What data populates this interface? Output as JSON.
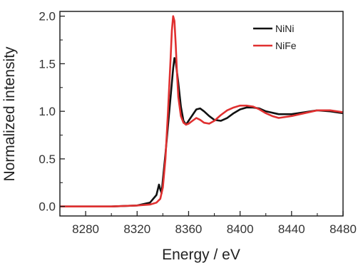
{
  "chart_data": {
    "type": "line",
    "xlabel": "Energy / eV",
    "ylabel": "Normalized intensity",
    "xlim": [
      8260,
      8480
    ],
    "ylim": [
      -0.1,
      2.05
    ],
    "xticks": [
      8280,
      8320,
      8360,
      8400,
      8440,
      8480
    ],
    "xtick_labels": [
      "8280",
      "8320",
      "8360",
      "8400",
      "8440",
      "8480"
    ],
    "yticks": [
      0.0,
      0.5,
      1.0,
      1.5,
      2.0
    ],
    "ytick_labels": [
      "0.0",
      "0.5",
      "1.0",
      "1.5",
      "2.0"
    ],
    "legend_position": "top-right",
    "grid": false,
    "series": [
      {
        "name": "NiNi",
        "color": "#111111",
        "x": [
          8260,
          8300,
          8320,
          8330,
          8335,
          8337,
          8338,
          8339,
          8340,
          8342,
          8344,
          8346,
          8347,
          8348,
          8349,
          8350,
          8352,
          8354,
          8356,
          8358,
          8360,
          8363,
          8366,
          8369,
          8372,
          8376,
          8380,
          8385,
          8390,
          8395,
          8400,
          8405,
          8410,
          8415,
          8420,
          8430,
          8440,
          8450,
          8460,
          8470,
          8480
        ],
        "y": [
          0.0,
          0.0,
          0.01,
          0.04,
          0.12,
          0.23,
          0.18,
          0.14,
          0.28,
          0.55,
          0.85,
          1.15,
          1.3,
          1.45,
          1.56,
          1.52,
          1.3,
          1.05,
          0.9,
          0.86,
          0.9,
          0.96,
          1.02,
          1.03,
          1.0,
          0.95,
          0.91,
          0.9,
          0.93,
          0.98,
          1.02,
          1.04,
          1.04,
          1.03,
          1.0,
          0.97,
          0.97,
          0.99,
          1.01,
          1.0,
          0.98
        ]
      },
      {
        "name": "NiFe",
        "color": "#e03030",
        "x": [
          8260,
          8300,
          8320,
          8330,
          8335,
          8338,
          8340,
          8342,
          8344,
          8346,
          8347,
          8348,
          8349,
          8350,
          8351,
          8352,
          8354,
          8356,
          8358,
          8360,
          8363,
          8366,
          8369,
          8372,
          8376,
          8380,
          8385,
          8390,
          8395,
          8400,
          8405,
          8410,
          8415,
          8420,
          8425,
          8430,
          8440,
          8450,
          8460,
          8470,
          8480
        ],
        "y": [
          0.0,
          0.0,
          0.01,
          0.02,
          0.04,
          0.08,
          0.2,
          0.5,
          1.0,
          1.55,
          1.85,
          2.0,
          1.95,
          1.7,
          1.4,
          1.15,
          0.95,
          0.88,
          0.86,
          0.87,
          0.9,
          0.93,
          0.91,
          0.88,
          0.87,
          0.9,
          0.96,
          1.01,
          1.04,
          1.06,
          1.06,
          1.05,
          1.02,
          0.98,
          0.95,
          0.93,
          0.95,
          0.98,
          1.01,
          1.01,
          0.99
        ]
      }
    ]
  }
}
